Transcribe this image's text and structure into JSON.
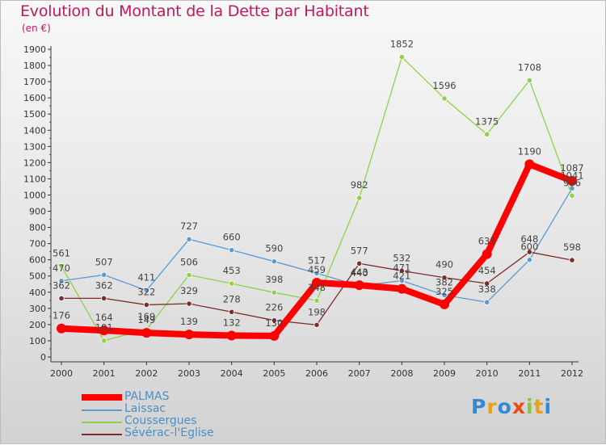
{
  "title": "Evolution du Montant de la Dette par Habitant",
  "unit": "(en €)",
  "logo": {
    "letters": [
      "P",
      "r",
      "o",
      "x",
      "i",
      "t",
      "i"
    ],
    "colors": [
      "#2e8bd6",
      "#e8a21a",
      "#2e8bd6",
      "#e84c1a",
      "#8ac43f",
      "#e8a21a",
      "#2e8bd6"
    ]
  },
  "chart_data": {
    "type": "line",
    "title": "Evolution du Montant de la Dette par Habitant",
    "ylabel": "(en €)",
    "xlabel": "",
    "x": [
      "2000",
      "2001",
      "2002",
      "2003",
      "2004",
      "2005",
      "2006",
      "2007",
      "2008",
      "2009",
      "2010",
      "2011",
      "2012"
    ],
    "ylim": [
      0,
      1900
    ],
    "yticks": [
      0,
      100,
      200,
      300,
      400,
      500,
      600,
      700,
      800,
      900,
      1000,
      1100,
      1200,
      1300,
      1400,
      1500,
      1600,
      1700,
      1800,
      1900
    ],
    "grid": false,
    "legend_position": "bottom-left",
    "series": [
      {
        "name": "PALMAS",
        "color": "#ff0000",
        "values": [
          176,
          164,
          149,
          139,
          132,
          130,
          459,
          443,
          421,
          325,
          635,
          1190,
          1087
        ]
      },
      {
        "name": "Laissac",
        "color": "#5b9bd5",
        "values": [
          470,
          507,
          411,
          727,
          660,
          590,
          517,
          440,
          471,
          382,
          338,
          600,
          1041
        ]
      },
      {
        "name": "Coussergues",
        "color": "#8ed14b",
        "values": [
          561,
          101,
          169,
          506,
          453,
          398,
          348,
          982,
          1852,
          1596,
          1375,
          1708,
          996
        ]
      },
      {
        "name": "Sévérac-l'Eglise",
        "color": "#7b2c2c",
        "values": [
          362,
          362,
          322,
          329,
          278,
          226,
          198,
          577,
          532,
          490,
          454,
          648,
          598
        ]
      }
    ]
  }
}
